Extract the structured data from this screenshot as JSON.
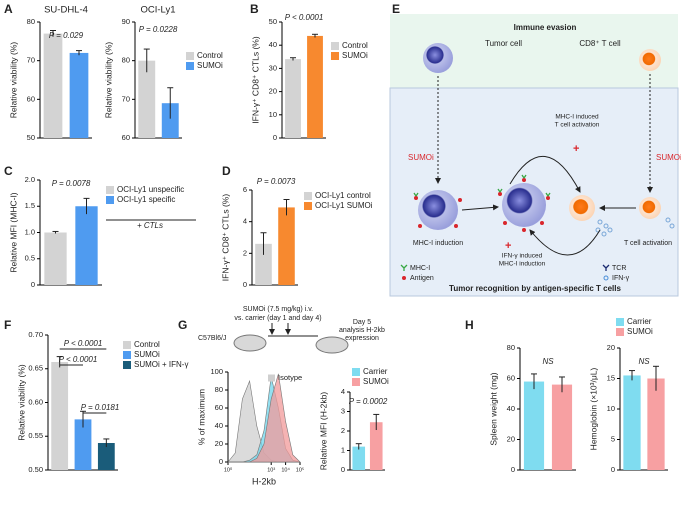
{
  "panels": [
    "A",
    "B",
    "C",
    "D",
    "E",
    "F",
    "G",
    "H"
  ],
  "chart_data": [
    {
      "type": "bar",
      "title": "SU-DHL-4",
      "ylabel": "Relative viability (%)",
      "categories": [
        "Control",
        "SUMOi"
      ],
      "colors": [
        "#d3d3d3",
        "#4f9bf0"
      ],
      "values": [
        77,
        72
      ],
      "errors": [
        0.8,
        0.6
      ],
      "ylim": [
        50,
        80
      ],
      "yticks": [
        50,
        60,
        70,
        80
      ],
      "annotations": [
        "P = 0.029"
      ]
    },
    {
      "type": "bar",
      "title": "OCI-Ly1",
      "ylabel": "Relative viability (%)",
      "categories": [
        "Control",
        "SUMOi"
      ],
      "colors": [
        "#d3d3d3",
        "#4f9bf0"
      ],
      "values": [
        80,
        69
      ],
      "errors": [
        3,
        4
      ],
      "ylim": [
        60,
        90
      ],
      "yticks": [
        60,
        70,
        80,
        90
      ],
      "annotations": [
        "P = 0.0228"
      ]
    },
    {
      "type": "bar",
      "ylabel": "IFN-γ⁺ CD8⁺ CTLs (%)",
      "categories": [
        "Control",
        "SUMOi"
      ],
      "colors": [
        "#d3d3d3",
        "#f7892f"
      ],
      "values": [
        34,
        44
      ],
      "errors": [
        0.6,
        0.7
      ],
      "ylim": [
        0,
        50
      ],
      "yticks": [
        0,
        10,
        20,
        30,
        40,
        50
      ],
      "annotations": [
        "P < 0.0001"
      ]
    },
    {
      "type": "bar",
      "ylabel": "Relative MFI (MHC-I)",
      "categories": [
        "OCI-Ly1 unspecific",
        "OCI-Ly1 specific"
      ],
      "colors": [
        "#d3d3d3",
        "#4f9bf0"
      ],
      "values": [
        1.0,
        1.5
      ],
      "errors": [
        0.02,
        0.15
      ],
      "ylim": [
        0,
        2
      ],
      "yticks": [
        0,
        0.5,
        {
          "value": 1,
          "label": "1.0"
        },
        {
          "value": 1.5,
          "label": "1.5"
        },
        {
          "value": 2,
          "label": "2.0"
        }
      ],
      "annotations": [
        "P = 0.0078",
        "+ CTLs"
      ]
    },
    {
      "type": "bar",
      "ylabel": "IFN-γ⁺ CD8⁺ CTLs (%)",
      "categories": [
        "OCI-Ly1 control",
        "OCI-Ly1 SUMOi"
      ],
      "colors": [
        "#d3d3d3",
        "#f7892f"
      ],
      "values": [
        2.6,
        4.9
      ],
      "errors": [
        0.7,
        0.5
      ],
      "ylim": [
        0,
        6
      ],
      "yticks": [
        0,
        2,
        4,
        6
      ],
      "annotations": [
        "P = 0.0073"
      ]
    },
    {
      "type": "bar",
      "ylabel": "Relative viability (%)",
      "categories": [
        "Control",
        "SUMOi",
        "SUMOi + IFN-γ"
      ],
      "colors": [
        "#d3d3d3",
        "#4f9bf0",
        "#1a5c7a"
      ],
      "values": [
        0.66,
        0.575,
        0.54
      ],
      "errors": [
        0.008,
        0.012,
        0.006
      ],
      "ylim": [
        0.5,
        0.7
      ],
      "yticks": [
        {
          "value": 0.5,
          "label": "0.50"
        },
        {
          "value": 0.55,
          "label": "0.55"
        },
        {
          "value": 0.6,
          "label": "0.60"
        },
        {
          "value": 0.65,
          "label": "0.65"
        },
        {
          "value": 0.7,
          "label": "0.70"
        }
      ],
      "annotations": [
        "P < 0.0001",
        "P < 0.0001",
        "P = 0.0181"
      ]
    },
    {
      "type": "area",
      "ylabel": "% of maximum",
      "xlabel": "H-2kb",
      "x": [
        0,
        0.5,
        1,
        1.5,
        2,
        2.5,
        3,
        3.5,
        4,
        4.5,
        5
      ],
      "xlim": [
        0,
        5
      ],
      "xticks": [
        {
          "value": 0,
          "label": "10⁰"
        },
        {
          "value": 3,
          "label": "10³"
        },
        {
          "value": 4,
          "label": "10⁴"
        },
        {
          "value": 5,
          "label": "10⁵"
        }
      ],
      "ylim": [
        0,
        100
      ],
      "yticks": [
        0,
        20,
        40,
        60,
        80,
        100
      ],
      "series": [
        {
          "name": "Isotype",
          "color": "#cfcfcf",
          "values": [
            0,
            10,
            70,
            90,
            40,
            10,
            2,
            0,
            0,
            0,
            0
          ]
        },
        {
          "color": "#6fd6ec",
          "values": [
            0,
            0,
            0,
            2,
            8,
            35,
            95,
            60,
            15,
            2,
            0
          ]
        },
        {
          "color": "#f29a9a",
          "values": [
            0,
            0,
            0,
            0,
            4,
            20,
            70,
            98,
            45,
            8,
            0
          ]
        }
      ]
    },
    {
      "type": "bar",
      "ylabel": "Relative MFI (H-2kb)",
      "categories": [
        "Carrier",
        "SUMOi"
      ],
      "colors": [
        "#7fdcf0",
        "#f7a0a2"
      ],
      "values": [
        1.2,
        2.45
      ],
      "errors": [
        0.15,
        0.4
      ],
      "ylim": [
        0,
        4
      ],
      "yticks": [
        0,
        1,
        2,
        3,
        4
      ],
      "annotations": [
        "P = 0.0002"
      ]
    },
    {
      "type": "bar",
      "ylabel": "Spleen weight (mg)",
      "categories": [
        "Carrier",
        "SUMOi"
      ],
      "colors": [
        "#7fdcf0",
        "#f7a0a2"
      ],
      "values": [
        58,
        56
      ],
      "errors": [
        5,
        5
      ],
      "ylim": [
        0,
        80
      ],
      "yticks": [
        0,
        20,
        40,
        60,
        80
      ],
      "annotations": [
        "NS"
      ]
    },
    {
      "type": "bar",
      "ylabel": "Hemoglobin (×10³/μL)",
      "categories": [
        "Carrier",
        "SUMOi"
      ],
      "colors": [
        "#7fdcf0",
        "#f7a0a2"
      ],
      "values": [
        15.5,
        15
      ],
      "errors": [
        0.8,
        2
      ],
      "ylim": [
        0,
        20
      ],
      "yticks": [
        0,
        5,
        10,
        15,
        20
      ],
      "annotations": [
        "NS"
      ]
    }
  ],
  "diagram": {
    "top_title": "Immune evasion",
    "tumor_cell": "Tumor cell",
    "t_cell": "CD8⁺ T cell",
    "sumoi_left": "SUMOi",
    "sumoi_right": "SUMOi",
    "mhc_t_activation": [
      "MHC-I induced",
      "T cell activation"
    ],
    "mhc_induction": "MHC-I induction",
    "t_activation": "T cell activation",
    "ifn_mhc": [
      "IFN-γ induced",
      "MHC-I induction"
    ],
    "legend": [
      "MHC-I",
      "Antigen",
      "TCR",
      "IFN-γ"
    ],
    "bottom_title": "Tumor recognition by antigen-specific T cells"
  },
  "schematic": {
    "treatment": [
      "SUMOi (7.5 mg/kg) i.v.",
      "vs. carrier (day 1 and day 4)"
    ],
    "strain": "C57Bl6/J",
    "analysis": [
      "Day 5",
      "analysis H-2kb",
      "expression"
    ]
  }
}
